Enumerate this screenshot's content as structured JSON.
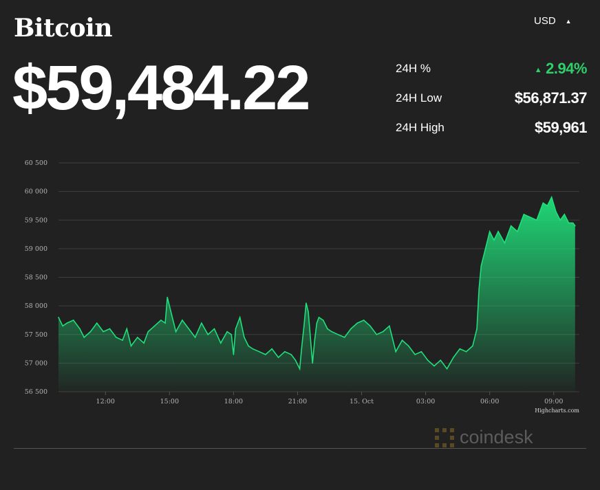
{
  "header": {
    "title": "Bitcoin",
    "price": "$59,484.22",
    "currency": "USD"
  },
  "stats": [
    {
      "label": "24H %",
      "value": "2.94%",
      "trend": "up"
    },
    {
      "label": "24H Low",
      "value": "$56,871.37"
    },
    {
      "label": "24H High",
      "value": "$59,961"
    }
  ],
  "colors": {
    "background": "#212121",
    "up": "#2fcf6c",
    "line": "#1fe07a",
    "grid": "#3f3f3f"
  },
  "chart_data": {
    "type": "area",
    "x_unit": "hours",
    "x_ticks": [
      {
        "value": 12,
        "label": "12:00"
      },
      {
        "value": 15,
        "label": "15:00"
      },
      {
        "value": 18,
        "label": "18:00"
      },
      {
        "value": 21,
        "label": "21:00"
      },
      {
        "value": 24,
        "label": "15. Oct"
      },
      {
        "value": 27,
        "label": "03:00"
      },
      {
        "value": 30,
        "label": "06:00"
      },
      {
        "value": 33,
        "label": "09:00"
      }
    ],
    "y_ticks": [
      {
        "value": 56500,
        "label": "56 500"
      },
      {
        "value": 57000,
        "label": "57 000"
      },
      {
        "value": 57500,
        "label": "57 500"
      },
      {
        "value": 58000,
        "label": "58 000"
      },
      {
        "value": 58500,
        "label": "58 500"
      },
      {
        "value": 59000,
        "label": "59 000"
      },
      {
        "value": 59500,
        "label": "59 500"
      },
      {
        "value": 60000,
        "label": "60 000"
      },
      {
        "value": 60500,
        "label": "60 500"
      }
    ],
    "xlim": [
      9.8,
      34.2
    ],
    "ylim": [
      56500,
      60500
    ],
    "grid": true,
    "legend": "none",
    "credit": "Highcharts.com",
    "series": [
      {
        "x": [
          9.8,
          10.0,
          10.2,
          10.5,
          10.8,
          11.0,
          11.3,
          11.6,
          11.9,
          12.2,
          12.5,
          12.8,
          13.0,
          13.2,
          13.5,
          13.8,
          14.0,
          14.3,
          14.6,
          14.8,
          14.9,
          15.1,
          15.3,
          15.6,
          15.9,
          16.2,
          16.5,
          16.8,
          17.1,
          17.4,
          17.7,
          17.9,
          18.0,
          18.1,
          18.3,
          18.5,
          18.7,
          18.9,
          19.2,
          19.5,
          19.8,
          20.1,
          20.4,
          20.7,
          20.9,
          21.1,
          21.2,
          21.3,
          21.4,
          21.5,
          21.6,
          21.7,
          21.8,
          21.9,
          22.0,
          22.2,
          22.4,
          22.6,
          22.9,
          23.2,
          23.5,
          23.8,
          24.1,
          24.4,
          24.7,
          25.0,
          25.3,
          25.6,
          25.9,
          26.2,
          26.5,
          26.8,
          27.1,
          27.4,
          27.7,
          28.0,
          28.3,
          28.6,
          28.9,
          29.2,
          29.4,
          29.5,
          29.6,
          29.8,
          30.0,
          30.2,
          30.4,
          30.7,
          31.0,
          31.3,
          31.6,
          31.9,
          32.2,
          32.5,
          32.7,
          32.9,
          33.1,
          33.3,
          33.5,
          33.7,
          33.9,
          34.0
        ],
        "values": [
          57800,
          57650,
          57700,
          57750,
          57600,
          57450,
          57550,
          57700,
          57550,
          57600,
          57450,
          57400,
          57600,
          57300,
          57450,
          57350,
          57550,
          57650,
          57750,
          57700,
          58150,
          57850,
          57550,
          57750,
          57600,
          57450,
          57700,
          57500,
          57600,
          57350,
          57550,
          57500,
          57150,
          57600,
          57800,
          57450,
          57300,
          57250,
          57200,
          57150,
          57250,
          57100,
          57200,
          57150,
          57050,
          56900,
          57300,
          57650,
          58050,
          57900,
          57450,
          57000,
          57400,
          57700,
          57800,
          57750,
          57600,
          57550,
          57500,
          57450,
          57600,
          57700,
          57750,
          57650,
          57500,
          57550,
          57650,
          57200,
          57400,
          57300,
          57150,
          57200,
          57050,
          56950,
          57050,
          56900,
          57100,
          57250,
          57200,
          57300,
          57600,
          58300,
          58700,
          59000,
          59300,
          59150,
          59300,
          59100,
          59400,
          59300,
          59600,
          59550,
          59500,
          59800,
          59750,
          59900,
          59650,
          59500,
          59600,
          59450,
          59450,
          59400
        ]
      }
    ]
  }
}
